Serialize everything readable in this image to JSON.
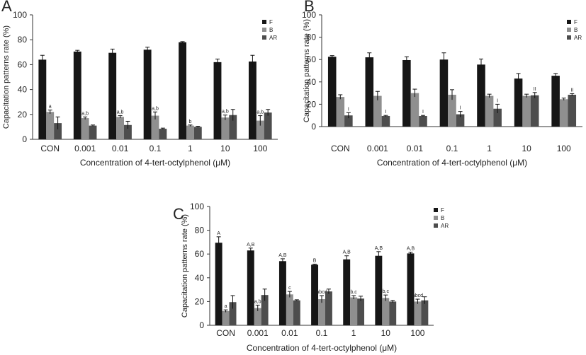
{
  "colors": {
    "F": "#161616",
    "B": "#8f8f8f",
    "AR": "#4d4d4d"
  },
  "chart_data": [
    {
      "panel": "A",
      "type": "bar",
      "ylabel": "Capacitation patterns rate (%)",
      "xlabel": "Concentration of 4-tert-octylphenol (μM)",
      "ylim": [
        0,
        100
      ],
      "yticks": [
        0,
        20,
        40,
        60,
        80,
        100
      ],
      "categories": [
        "CON",
        "0.001",
        "0.01",
        "0.1",
        "1",
        "10",
        "100"
      ],
      "legend": [
        "F",
        "B",
        "AR"
      ],
      "series": [
        {
          "name": "F",
          "values": [
            64,
            70.5,
            69.5,
            72,
            78,
            62,
            62.5
          ],
          "errors": [
            3.5,
            1,
            3,
            2,
            0.5,
            2.5,
            5
          ],
          "labels": [
            "",
            "",
            "",
            "",
            "",
            "",
            ""
          ]
        },
        {
          "name": "B",
          "values": [
            22,
            17,
            18,
            19,
            11,
            17.5,
            15
          ],
          "errors": [
            1.5,
            1,
            1,
            3,
            0.5,
            2,
            4
          ],
          "labels": [
            "a",
            "a,b",
            "a,b",
            "a,b",
            "b",
            "a,b",
            "a,b"
          ]
        },
        {
          "name": "AR",
          "values": [
            13,
            11,
            11.5,
            8.5,
            10,
            19.5,
            21.5
          ],
          "errors": [
            5,
            0.5,
            3,
            0.5,
            0.5,
            4.5,
            2.5
          ],
          "labels": [
            "",
            "",
            "",
            "",
            "",
            "",
            ""
          ]
        }
      ]
    },
    {
      "panel": "B",
      "type": "bar",
      "ylabel": "Capacitation patterns rate (%)",
      "xlabel": "Concentration of 4-tert-octylphenol (μM)",
      "ylim": [
        0,
        100
      ],
      "yticks": [
        0,
        20,
        40,
        60,
        80,
        100
      ],
      "categories": [
        "CON",
        "0.001",
        "0.01",
        "0.1",
        "1",
        "10",
        "100"
      ],
      "legend": [
        "F",
        "B",
        "AR"
      ],
      "series": [
        {
          "name": "F",
          "values": [
            62.5,
            62,
            59.5,
            60,
            55.5,
            43,
            45.5
          ],
          "errors": [
            1,
            4,
            3,
            6,
            5,
            4.5,
            2
          ],
          "labels": [
            "",
            "",
            "",
            "",
            "",
            "",
            ""
          ]
        },
        {
          "name": "B",
          "values": [
            26.5,
            27.5,
            30,
            28.5,
            27.5,
            27.5,
            24.5
          ],
          "errors": [
            2,
            4,
            3.5,
            4.5,
            1.5,
            1.5,
            1
          ],
          "labels": [
            "",
            "",
            "",
            "",
            "",
            "",
            ""
          ]
        },
        {
          "name": "AR",
          "values": [
            10,
            9.5,
            9.5,
            11,
            16,
            28,
            28.5
          ],
          "errors": [
            2.5,
            0.5,
            0.5,
            2.5,
            4,
            2.5,
            1
          ],
          "labels": [
            "I",
            "I",
            "I",
            "I",
            "I",
            "II",
            "II"
          ]
        }
      ]
    },
    {
      "panel": "C",
      "type": "bar",
      "ylabel": "Capacitation patterns rate (%)",
      "xlabel": "Concentration of 4-tert-octylphenol (μM)",
      "ylim": [
        0,
        100
      ],
      "yticks": [
        0,
        20,
        40,
        60,
        80,
        100
      ],
      "categories": [
        "CON",
        "0.001",
        "0.01",
        "0.1",
        "1",
        "10",
        "100"
      ],
      "legend": [
        "F",
        "B",
        "AR"
      ],
      "series": [
        {
          "name": "F",
          "values": [
            69.5,
            63,
            54,
            51,
            55.5,
            58.5,
            60.5
          ],
          "errors": [
            5,
            2,
            2,
            0.5,
            3,
            3.5,
            1
          ],
          "labels": [
            "A",
            "A,B",
            "A,B",
            "B",
            "A,B",
            "A,B",
            "A,B"
          ]
        },
        {
          "name": "B",
          "values": [
            12,
            14.5,
            26,
            22,
            23.5,
            23,
            20
          ],
          "errors": [
            1,
            2.5,
            2.5,
            3,
            1.5,
            2.5,
            2
          ],
          "labels": [
            "a",
            "a,b",
            "c",
            "abcd",
            "b,c",
            "b,c",
            "abcd"
          ]
        },
        {
          "name": "AR",
          "values": [
            19.5,
            25.5,
            21,
            28.5,
            22.5,
            20,
            21
          ],
          "errors": [
            5.5,
            5,
            0.5,
            2,
            2,
            1,
            3
          ],
          "labels": [
            "",
            "",
            "",
            "",
            "",
            "",
            ""
          ]
        }
      ]
    }
  ]
}
